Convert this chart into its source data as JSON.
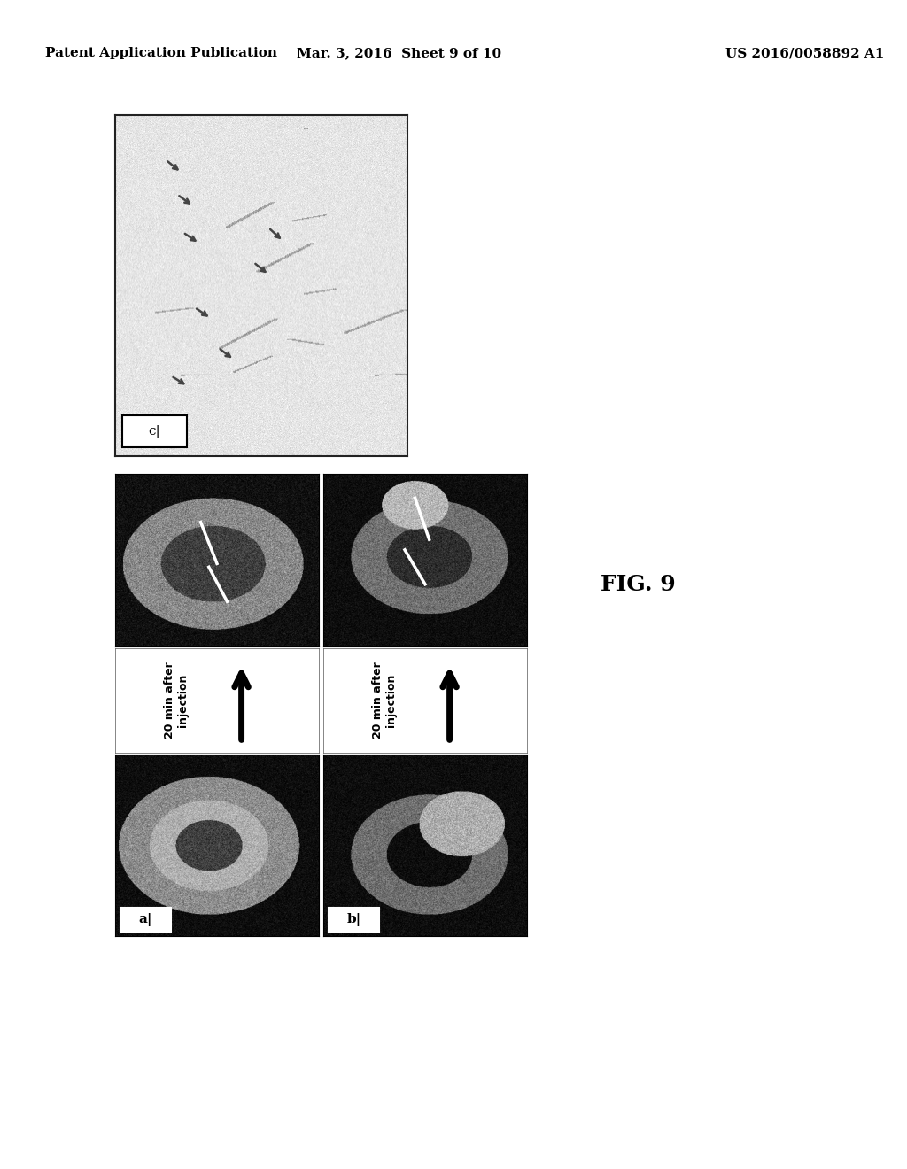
{
  "header_left": "Patent Application Publication",
  "header_mid": "Mar. 3, 2016  Sheet 9 of 10",
  "header_right": "US 2016/0058892 A1",
  "fig_label": "FIG. 9",
  "label_c": "c|",
  "label_a": "a|",
  "label_b": "b|",
  "arrow_text": "20 min after\ninjection",
  "bg_color": "#ffffff",
  "header_fontsize": 11,
  "fig_label_fontsize": 18
}
